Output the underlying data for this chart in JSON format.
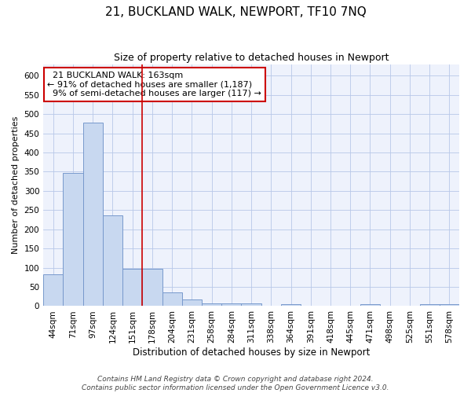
{
  "title": "21, BUCKLAND WALK, NEWPORT, TF10 7NQ",
  "subtitle": "Size of property relative to detached houses in Newport",
  "xlabel": "Distribution of detached houses by size in Newport",
  "ylabel": "Number of detached properties",
  "bar_color": "#c8d8f0",
  "bar_edge_color": "#7799cc",
  "vline_color": "#cc0000",
  "vline_x": 4.5,
  "property_label": "21 BUCKLAND WALK: 163sqm",
  "pct_smaller": 91,
  "count_smaller": 1187,
  "pct_larger": 9,
  "count_larger": 117,
  "categories": [
    "44sqm",
    "71sqm",
    "97sqm",
    "124sqm",
    "151sqm",
    "178sqm",
    "204sqm",
    "231sqm",
    "258sqm",
    "284sqm",
    "311sqm",
    "338sqm",
    "364sqm",
    "391sqm",
    "418sqm",
    "445sqm",
    "471sqm",
    "498sqm",
    "525sqm",
    "551sqm",
    "578sqm"
  ],
  "values": [
    83,
    347,
    477,
    236,
    97,
    97,
    36,
    17,
    7,
    8,
    7,
    0,
    5,
    0,
    0,
    0,
    5,
    0,
    0,
    5,
    5
  ],
  "ylim": [
    0,
    630
  ],
  "yticks": [
    0,
    50,
    100,
    150,
    200,
    250,
    300,
    350,
    400,
    450,
    500,
    550,
    600
  ],
  "background_color": "#eef2fc",
  "grid_color": "#b8c8e8",
  "footnote": "Contains HM Land Registry data © Crown copyright and database right 2024.\nContains public sector information licensed under the Open Government Licence v3.0.",
  "title_fontsize": 11,
  "subtitle_fontsize": 9,
  "xlabel_fontsize": 8.5,
  "ylabel_fontsize": 8,
  "tick_fontsize": 7.5,
  "annotation_fontsize": 8,
  "footnote_fontsize": 6.5
}
